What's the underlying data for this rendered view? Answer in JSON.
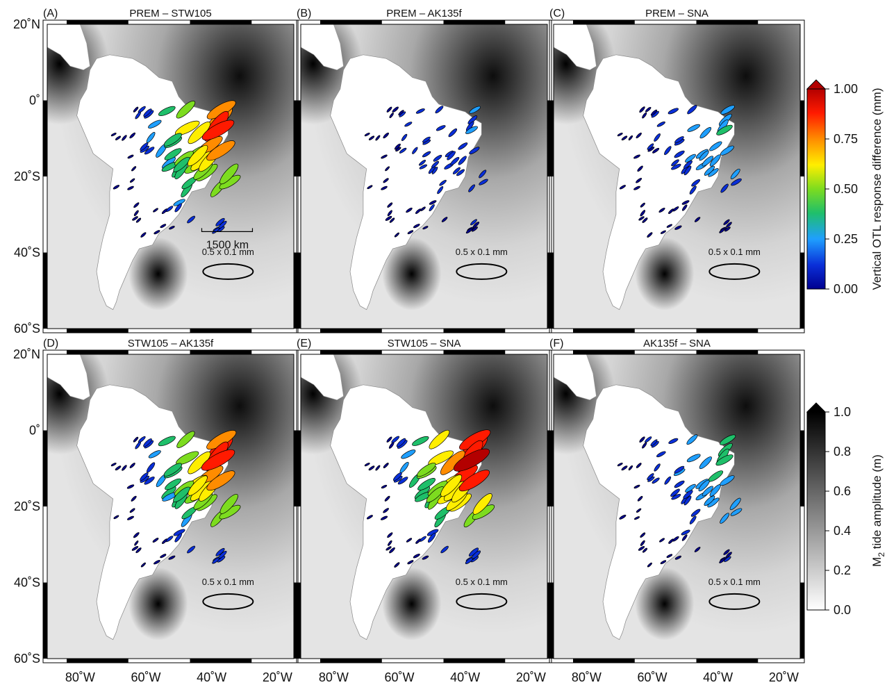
{
  "panels": [
    {
      "id": "A",
      "label": "(A)",
      "title": "PREM – STW105",
      "scale_bar": "1500 km",
      "ref_ellipse": "0.5 x 0.1 mm",
      "magnitude": 1.0
    },
    {
      "id": "B",
      "label": "(B)",
      "title": "PREM – AK135f",
      "ref_ellipse": "0.5 x 0.1 mm",
      "magnitude": 0.2
    },
    {
      "id": "C",
      "label": "(C)",
      "title": "PREM – SNA",
      "ref_ellipse": "0.5 x 0.1 mm",
      "magnitude": 0.35
    },
    {
      "id": "D",
      "label": "(D)",
      "title": "STW105 – AK135f",
      "ref_ellipse": "0.5 x 0.1 mm",
      "magnitude": 1.0
    },
    {
      "id": "E",
      "label": "(E)",
      "title": "STW105 – SNA",
      "ref_ellipse": "0.5 x 0.1 mm",
      "magnitude": 1.1
    },
    {
      "id": "F",
      "label": "(F)",
      "title": "AK135f – SNA",
      "ref_ellipse": "0.5 x 0.1 mm",
      "magnitude": 0.4
    }
  ],
  "axes": {
    "lat_ticks": [
      "20˚N",
      "0˚",
      "20˚S",
      "40˚S",
      "60˚S"
    ],
    "lon_ticks": [
      "80˚W",
      "60˚W",
      "40˚W",
      "20˚W"
    ]
  },
  "colorbars": {
    "otl": {
      "label": "Vertical OTL response difference (mm)",
      "ticks": [
        "1.00",
        "0.75",
        "0.50",
        "0.25",
        "0.00"
      ],
      "colors": [
        "#b30000",
        "#ff1a00",
        "#ff8c00",
        "#ffee00",
        "#7ddc1f",
        "#1fbf6a",
        "#1f9fff",
        "#0a2fd8",
        "#00008f"
      ]
    },
    "tide": {
      "label_main": "M",
      "label_sub": "2",
      "label_rest": " tide amplitude (m)",
      "ticks": [
        "1.0",
        "0.8",
        "0.6",
        "0.4",
        "0.2",
        "0.0"
      ]
    }
  }
}
